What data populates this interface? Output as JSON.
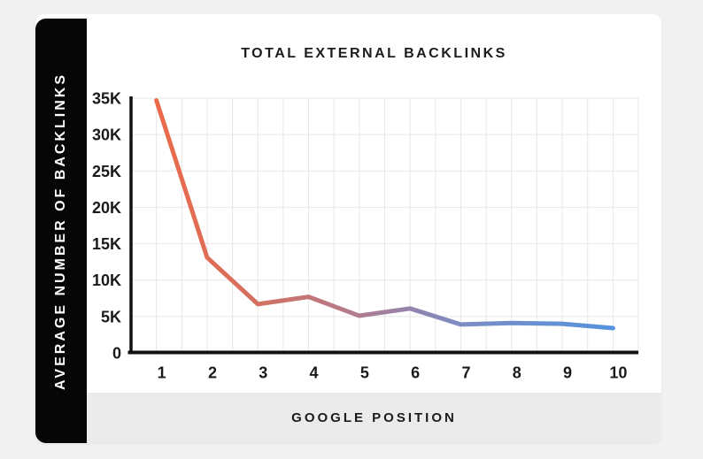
{
  "page": {
    "background_color": "#f1f1f1"
  },
  "card": {
    "background_color": "#ffffff"
  },
  "header": {
    "title": "TOTAL EXTERNAL BACKLINKS"
  },
  "sidebar": {
    "label": "AVERAGE NUMBER OF BACKLINKS"
  },
  "footer": {
    "label": "GOOGLE POSITION"
  },
  "chart_data": {
    "type": "line",
    "title": "TOTAL EXTERNAL BACKLINKS",
    "xlabel": "GOOGLE POSITION",
    "ylabel": "AVERAGE NUMBER OF BACKLINKS",
    "x": [
      1,
      2,
      3,
      4,
      5,
      6,
      7,
      8,
      9,
      10
    ],
    "values": [
      34700,
      13100,
      6700,
      7700,
      5100,
      6100,
      3900,
      4100,
      4000,
      3400
    ],
    "ylim": [
      0,
      35000
    ],
    "y_ticks": [
      "0",
      "5K",
      "10K",
      "15K",
      "20K",
      "25K",
      "30K",
      "35K"
    ],
    "y_tick_values": [
      0,
      5000,
      10000,
      15000,
      20000,
      25000,
      30000,
      35000
    ],
    "grid": true,
    "legend": "none",
    "line_width": 5,
    "gradient_stops": [
      {
        "offset": "0%",
        "color": "#ec6a4a"
      },
      {
        "offset": "20%",
        "color": "#d66f5d"
      },
      {
        "offset": "42%",
        "color": "#b57b89"
      },
      {
        "offset": "56%",
        "color": "#9184ae"
      },
      {
        "offset": "68%",
        "color": "#7a8dc5"
      },
      {
        "offset": "100%",
        "color": "#5593dd"
      }
    ],
    "grid_color": "#e7e7e7",
    "axis_color": "#111111",
    "tick_color": "#1a1a1a"
  }
}
